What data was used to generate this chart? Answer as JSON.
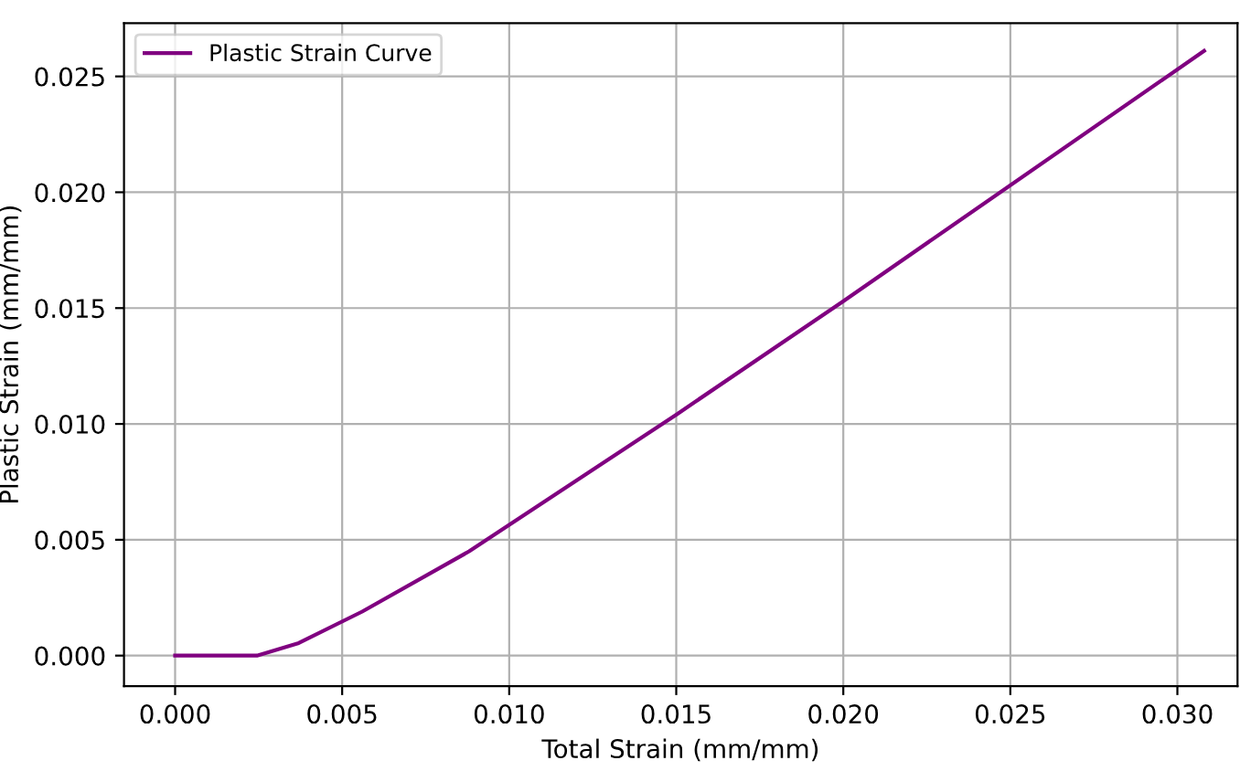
{
  "chart_data": {
    "type": "line",
    "xlabel": "Total Strain (mm/mm)",
    "ylabel": "Plastic Strain (mm/mm)",
    "series": [
      {
        "name": "Plastic Strain Curve",
        "color": "#800080",
        "x": [
          0,
          0.00245,
          0.0037,
          0.0056,
          0.0088,
          0.015,
          0.02,
          0.0308
        ],
        "values": [
          0,
          0,
          0.00054,
          0.0019,
          0.0045,
          0.0104,
          0.0153,
          0.0261
        ]
      }
    ],
    "xlim": [
      -0.00153,
      0.0318
    ],
    "ylim": [
      -0.00132,
      0.0273
    ],
    "xticks": [
      {
        "value": 0,
        "label": "0.000"
      },
      {
        "value": 0.005,
        "label": "0.005"
      },
      {
        "value": 0.01,
        "label": "0.010"
      },
      {
        "value": 0.015,
        "label": "0.015"
      },
      {
        "value": 0.02,
        "label": "0.020"
      },
      {
        "value": 0.025,
        "label": "0.025"
      },
      {
        "value": 0.03,
        "label": "0.030"
      }
    ],
    "yticks": [
      {
        "value": 0,
        "label": "0.000"
      },
      {
        "value": 0.005,
        "label": "0.005"
      },
      {
        "value": 0.01,
        "label": "0.010"
      },
      {
        "value": 0.015,
        "label": "0.015"
      },
      {
        "value": 0.02,
        "label": "0.020"
      },
      {
        "value": 0.025,
        "label": "0.025"
      }
    ],
    "grid": true,
    "legend": "top left",
    "line_style": "solid",
    "marker": "none"
  }
}
